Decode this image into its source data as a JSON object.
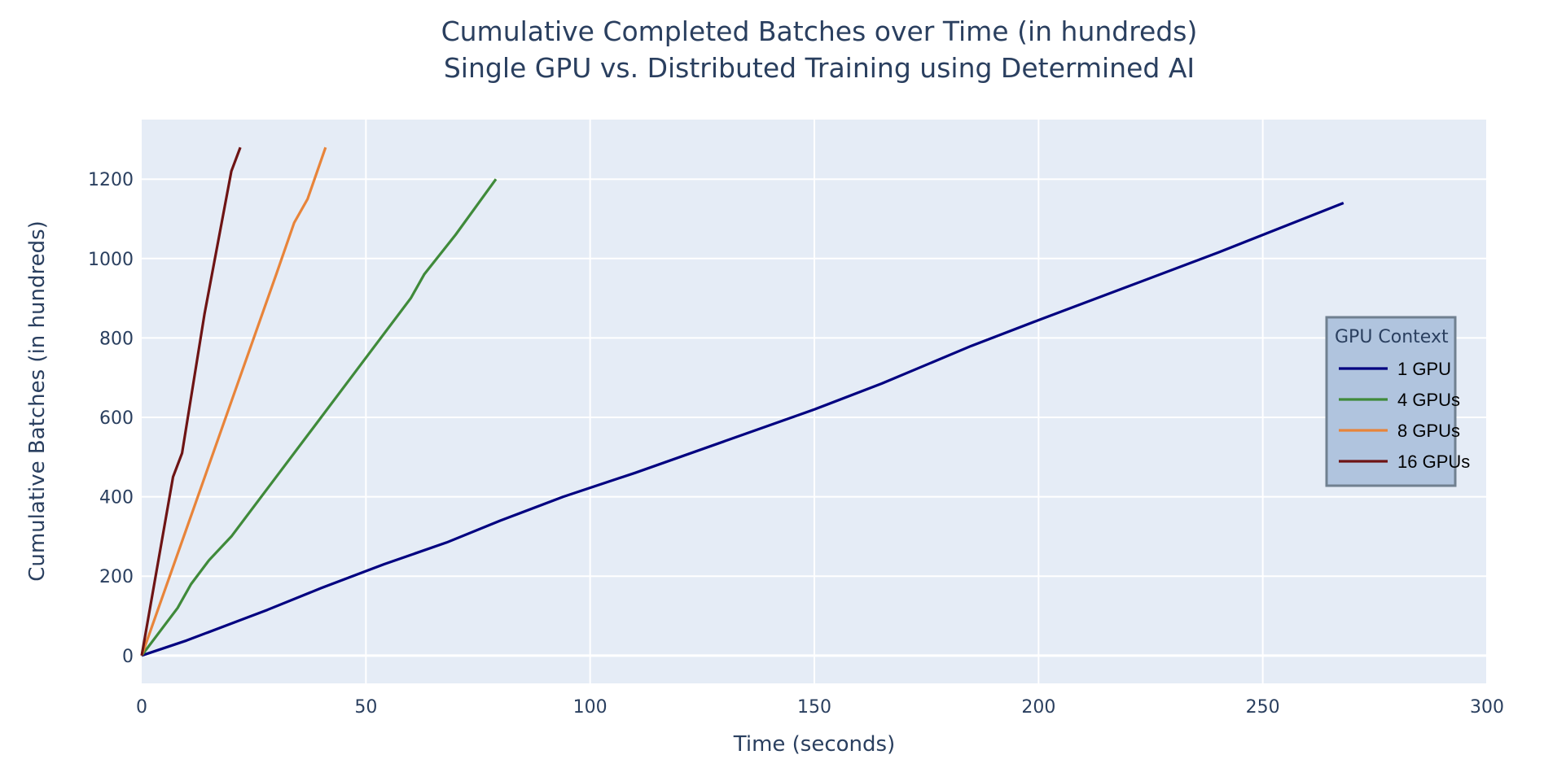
{
  "chart_data": {
    "type": "line",
    "title": "Cumulative Completed Batches over Time (in hundreds)",
    "subtitle": "Single GPU vs. Distributed Training using Determined AI",
    "xlabel": "Time (seconds)",
    "ylabel": "Cumulative Batches (in hundreds)",
    "xlim": [
      0,
      300
    ],
    "ylim": [
      -70,
      1350
    ],
    "x_ticks": [
      0,
      50,
      100,
      150,
      200,
      250,
      300
    ],
    "y_ticks": [
      0,
      200,
      400,
      600,
      800,
      1000,
      1200
    ],
    "grid": true,
    "legend": {
      "title": "GPU Context",
      "placement": "right"
    },
    "series": [
      {
        "name": "1 GPU",
        "color": "#000080",
        "x": [
          0,
          10,
          28,
          40,
          54,
          68,
          80,
          94,
          110,
          130,
          150,
          165,
          185,
          200,
          220,
          240,
          268
        ],
        "y": [
          0,
          38,
          115,
          170,
          230,
          285,
          340,
          400,
          460,
          540,
          620,
          685,
          780,
          845,
          930,
          1015,
          1140
        ]
      },
      {
        "name": "4 GPUs",
        "color": "#3f8a3a",
        "x": [
          0,
          8,
          11,
          15,
          20,
          30,
          40,
          50,
          60,
          63,
          70,
          79
        ],
        "y": [
          0,
          120,
          180,
          240,
          300,
          450,
          600,
          750,
          900,
          960,
          1060,
          1200
        ]
      },
      {
        "name": "8 GPUs",
        "color": "#e8843a",
        "x": [
          0,
          10,
          20,
          30,
          34,
          37,
          41
        ],
        "y": [
          0,
          320,
          640,
          960,
          1090,
          1150,
          1280
        ]
      },
      {
        "name": "16 GPUs",
        "color": "#6e1414",
        "x": [
          0,
          7,
          9,
          14,
          20,
          22
        ],
        "y": [
          0,
          450,
          510,
          860,
          1220,
          1280
        ]
      }
    ]
  },
  "colors": {
    "plot_background": "#e5ecf6",
    "grid": "#ffffff",
    "legend_background": "#b0c4de",
    "legend_border": "#708090",
    "text": "#2a3f5f"
  }
}
